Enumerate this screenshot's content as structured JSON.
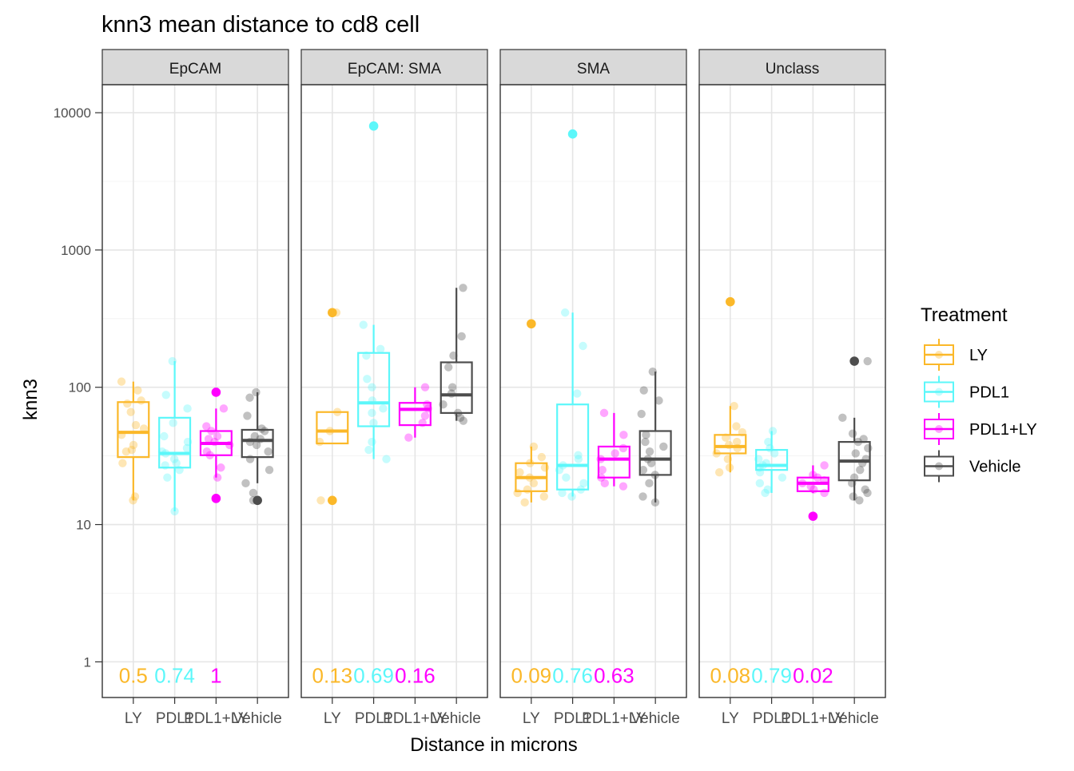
{
  "chart_data": {
    "type": "boxplot",
    "title": "knn3 mean distance to cd8 cell",
    "xlabel": "Distance in microns",
    "ylabel": "knn3",
    "y_scale": "log10",
    "ylim": [
      0.55,
      16000
    ],
    "y_ticks": [
      "1",
      "10",
      "100",
      "1000",
      "10000"
    ],
    "y_tick_values": [
      1,
      10,
      100,
      1000,
      10000
    ],
    "grid": true,
    "legend": {
      "title": "Treatment",
      "position": "right",
      "entries": [
        {
          "name": "LY",
          "color": "#FBB829"
        },
        {
          "name": "PDL1",
          "color": "#5CF7FA"
        },
        {
          "name": "PDL1+LY",
          "color": "#FF00FF"
        },
        {
          "name": "Vehicle",
          "color": "#4D4D4D"
        }
      ]
    },
    "categories": [
      "LY",
      "PDL1",
      "PDL1+LY",
      "Vehicle"
    ],
    "facets": [
      {
        "name": "EpCAM",
        "p_values": [
          "0.5",
          "0.74",
          "1",
          ""
        ],
        "groups": [
          {
            "treatment": "LY",
            "q1": 31,
            "median": 47,
            "q3": 78,
            "whisker_low": 15,
            "whisker_high": 110,
            "points": [
              15,
              16,
              28,
              34,
              35,
              38,
              45,
              50,
              53,
              66,
              76,
              80,
              95,
              110
            ],
            "outliers": []
          },
          {
            "treatment": "PDL1",
            "q1": 26,
            "median": 33,
            "q3": 60,
            "whisker_low": 12.5,
            "whisker_high": 155,
            "points": [
              12.5,
              22,
              25,
              27,
              28,
              30,
              33,
              34,
              36,
              40,
              44,
              55,
              70,
              88,
              155
            ],
            "outliers": []
          },
          {
            "treatment": "PDL1+LY",
            "q1": 32,
            "median": 39,
            "q3": 48,
            "whisker_low": 22,
            "whisker_high": 70,
            "points": [
              22,
              26,
              32,
              34,
              38,
              40,
              42,
              44,
              48,
              52,
              70
            ],
            "outliers": [
              15.5,
              92
            ]
          },
          {
            "treatment": "Vehicle",
            "q1": 31,
            "median": 41,
            "q3": 49,
            "whisker_low": 20,
            "whisker_high": 92,
            "points": [
              15,
              17,
              20,
              25,
              30,
              34,
              38,
              40,
              42,
              44,
              48,
              50,
              62,
              84,
              92
            ],
            "outliers": [
              15
            ]
          }
        ]
      },
      {
        "name": "EpCAM: SMA",
        "p_values": [
          "0.13",
          "0.69",
          "0.16",
          ""
        ],
        "groups": [
          {
            "treatment": "LY",
            "q1": 39,
            "median": 48,
            "q3": 66,
            "whisker_low": 39,
            "whisker_high": 66,
            "points": [
              15,
              40,
              48,
              66,
              350
            ],
            "outliers": [
              15,
              350
            ]
          },
          {
            "treatment": "PDL1",
            "q1": 52,
            "median": 77,
            "q3": 178,
            "whisker_low": 30,
            "whisker_high": 285,
            "points": [
              30,
              35,
              40,
              55,
              65,
              70,
              80,
              100,
              115,
              170,
              190,
              285
            ],
            "outliers": [
              8000
            ]
          },
          {
            "treatment": "PDL1+LY",
            "q1": 53,
            "median": 69,
            "q3": 77,
            "whisker_low": 43,
            "whisker_high": 100,
            "points": [
              43,
              55,
              62,
              70,
              75,
              100
            ],
            "outliers": []
          },
          {
            "treatment": "Vehicle",
            "q1": 65,
            "median": 88,
            "q3": 152,
            "whisker_low": 57,
            "whisker_high": 530,
            "points": [
              57,
              60,
              65,
              75,
              90,
              100,
              140,
              170,
              235,
              530
            ],
            "outliers": []
          }
        ]
      },
      {
        "name": "SMA",
        "p_values": [
          "0.09",
          "0.76",
          "0.63",
          ""
        ],
        "groups": [
          {
            "treatment": "LY",
            "q1": 17.5,
            "median": 22,
            "q3": 28,
            "whisker_low": 14.5,
            "whisker_high": 37,
            "points": [
              14.5,
              16,
              17,
              18,
              20,
              22,
              24,
              26,
              28,
              31,
              37
            ],
            "outliers": [
              290
            ]
          },
          {
            "treatment": "PDL1",
            "q1": 18,
            "median": 27,
            "q3": 75,
            "whisker_low": 16,
            "whisker_high": 350,
            "points": [
              16,
              17,
              18,
              20,
              22,
              25,
              27,
              30,
              32,
              90,
              200,
              350
            ],
            "outliers": [
              7000
            ]
          },
          {
            "treatment": "PDL1+LY",
            "q1": 22,
            "median": 30,
            "q3": 37,
            "whisker_low": 19,
            "whisker_high": 65,
            "points": [
              19,
              20,
              22,
              25,
              30,
              33,
              36,
              45,
              65
            ],
            "outliers": []
          },
          {
            "treatment": "Vehicle",
            "q1": 23,
            "median": 30,
            "q3": 48,
            "whisker_low": 14.5,
            "whisker_high": 130,
            "points": [
              14.5,
              16,
              20,
              23,
              25,
              28,
              30,
              34,
              37,
              40,
              45,
              64,
              80,
              95,
              130
            ],
            "outliers": []
          }
        ]
      },
      {
        "name": "Unclass",
        "p_values": [
          "0.08",
          "0.79",
          "0.02",
          ""
        ],
        "groups": [
          {
            "treatment": "LY",
            "q1": 33,
            "median": 37,
            "q3": 45,
            "whisker_low": 24,
            "whisker_high": 73,
            "points": [
              24,
              26,
              30,
              33,
              36,
              38,
              40,
              43,
              47,
              52,
              73
            ],
            "outliers": [
              420
            ]
          },
          {
            "treatment": "PDL1",
            "q1": 25,
            "median": 27,
            "q3": 35,
            "whisker_low": 17,
            "whisker_high": 48,
            "points": [
              17,
              18,
              20,
              22,
              24,
              26,
              27,
              28,
              30,
              33,
              36,
              40,
              48
            ],
            "outliers": []
          },
          {
            "treatment": "PDL1+LY",
            "q1": 17.5,
            "median": 20,
            "q3": 22,
            "whisker_low": 17,
            "whisker_high": 27,
            "points": [
              17,
              18,
              19,
              20,
              21,
              22,
              23,
              27
            ],
            "outliers": [
              11.5
            ]
          },
          {
            "treatment": "Vehicle",
            "q1": 21,
            "median": 29,
            "q3": 40,
            "whisker_low": 15,
            "whisker_high": 60,
            "points": [
              15,
              16,
              17,
              18,
              20,
              22,
              25,
              28,
              30,
              33,
              36,
              40,
              42,
              46,
              60,
              155
            ],
            "outliers": [
              155
            ]
          }
        ]
      }
    ]
  }
}
